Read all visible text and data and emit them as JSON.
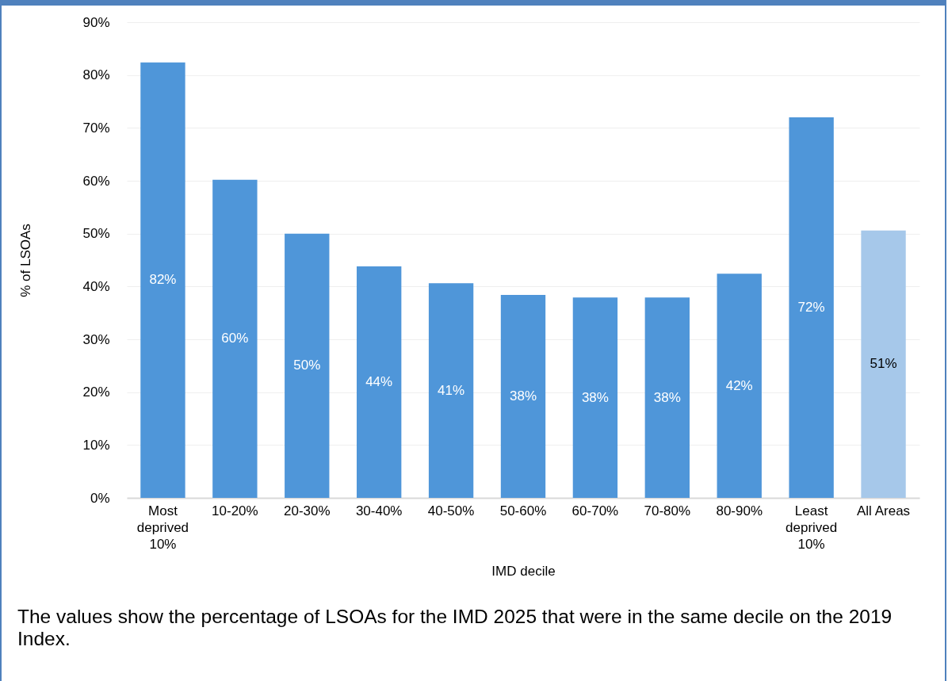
{
  "chart_data": {
    "type": "bar",
    "xlabel": "IMD decile",
    "ylabel": "% of LSOAs",
    "categories": [
      "Most\ndeprived\n10%",
      "10-20%",
      "20-30%",
      "30-40%",
      "40-50%",
      "50-60%",
      "60-70%",
      "70-80%",
      "80-90%",
      "Least\ndeprived\n10%",
      "All Areas"
    ],
    "values": [
      82.4,
      60.2,
      50,
      43.8,
      40.6,
      38.4,
      37.9,
      37.9,
      42.4,
      72,
      50.6
    ],
    "value_labels": [
      "82%",
      "60%",
      "50%",
      "44%",
      "41%",
      "38%",
      "38%",
      "38%",
      "42%",
      "72%",
      "51%"
    ],
    "colors": [
      "#4f96d9",
      "#4f96d9",
      "#4f96d9",
      "#4f96d9",
      "#4f96d9",
      "#4f96d9",
      "#4f96d9",
      "#4f96d9",
      "#4f96d9",
      "#4f96d9",
      "#a6c8ea"
    ],
    "ylim": [
      0,
      90
    ],
    "yticks": [
      {
        "value": 0,
        "label": "0%"
      },
      {
        "value": 10,
        "label": "10%"
      },
      {
        "value": 20,
        "label": "20%"
      },
      {
        "value": 30,
        "label": "30%"
      },
      {
        "value": 40,
        "label": "40%"
      },
      {
        "value": 50,
        "label": "50%"
      },
      {
        "value": 60,
        "label": "60%"
      },
      {
        "value": 70,
        "label": "70%"
      },
      {
        "value": 80,
        "label": "80%"
      },
      {
        "value": 90,
        "label": "90%"
      }
    ],
    "grid": "y",
    "annotations": [
      "The values show the percentage of LSOAs for the IMD 2025 that were in the same decile on the 2019 Index."
    ]
  }
}
